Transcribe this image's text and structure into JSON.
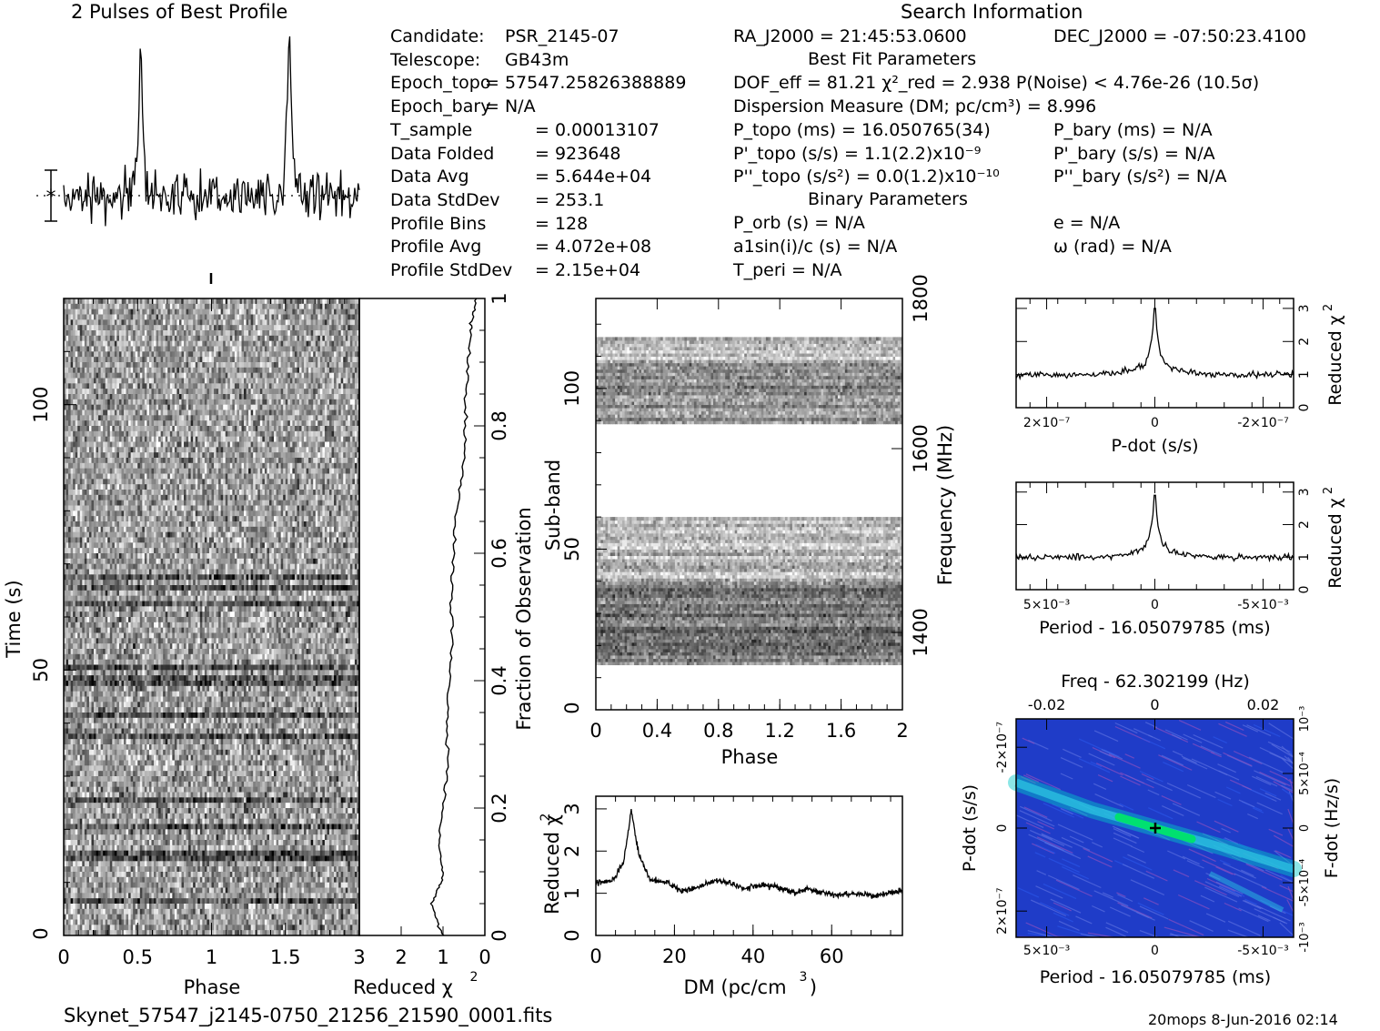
{
  "titles": {
    "profile_title": "2 Pulses of Best Profile",
    "search_title": "Search Information",
    "best_fit_title": "Best Fit Parameters",
    "binary_title": "Binary Parameters"
  },
  "candidate_info": [
    {
      "label": "Candidate:",
      "value": "PSR_2145-07"
    },
    {
      "label": "Telescope:",
      "value": "GB43m"
    },
    {
      "label": "Epoch_topo",
      "value": "= 57547.25826388889"
    },
    {
      "label": "Epoch_bary",
      "value": "= N/A"
    },
    {
      "label": "T_sample",
      "value": "= 0.00013107"
    },
    {
      "label": "Data Folded",
      "value": "= 923648"
    },
    {
      "label": "Data Avg",
      "value": "= 5.644e+04"
    },
    {
      "label": "Data StdDev",
      "value": "= 253.1"
    },
    {
      "label": "Profile Bins",
      "value": "= 128"
    },
    {
      "label": "Profile Avg",
      "value": "= 4.072e+08"
    },
    {
      "label": "Profile StdDev",
      "value": "= 2.15e+04"
    }
  ],
  "search_info": {
    "ra": "RA_J2000 = 21:45:53.0600",
    "dec": "DEC_J2000 = -07:50:23.4100",
    "dof": "DOF_eff = 81.21   χ²_red = 2.938   P(Noise) < 4.76e-26  (10.5σ)",
    "dm": "Dispersion Measure (DM; pc/cm³) = 8.996",
    "p_topo": "P_topo (ms) =  16.050765(34)",
    "p_bary": "P_bary (ms) = N/A",
    "pd_topo": "P'_topo (s/s) =  1.1(2.2)x10⁻⁹",
    "pd_bary": "P'_bary (s/s) = N/A",
    "pdd_topo": "P''_topo (s/s²) = 0.0(1.2)x10⁻¹⁰",
    "pdd_bary": "P''_bary (s/s²) = N/A",
    "p_orb": "P_orb (s) = N/A",
    "e": "e = N/A",
    "a1": "a1sin(i)/c (s) = N/A",
    "omega": "ω (rad) = N/A",
    "t_peri": "T_peri = N/A"
  },
  "footer": {
    "filename": "Skynet_57547_j2145-0750_21256_21590_0001.fits",
    "stamp": "20mops   8-Jun-2016 02:14"
  },
  "colors": {
    "ink": "#000000",
    "ppdot_bg": "#1f3cc8",
    "ppdot_ridge": "#00e070",
    "marker": "#000000"
  },
  "chart_data": [
    {
      "type": "line",
      "id": "profile",
      "title": "2 Pulses of Best Profile",
      "xlabel": "",
      "ylabel": "",
      "xlim": [
        0,
        2
      ],
      "peaks_phase": [
        0.52,
        1.52
      ],
      "error_bar": true
    },
    {
      "type": "heatmap",
      "id": "time_phase",
      "xlabel": "Phase",
      "ylabel": "Time (s)",
      "xlim": [
        0,
        2
      ],
      "ylim": [
        0,
        120
      ],
      "x_ticks": [
        "0",
        "0.5",
        "1",
        "1.5"
      ],
      "y_ticks": [
        "0",
        "50",
        "100"
      ]
    },
    {
      "type": "line",
      "id": "fraction_chi2",
      "xlabel": "Reduced χ²",
      "ylabel": "Fraction of Observation",
      "xlim": [
        3,
        0
      ],
      "ylim": [
        0,
        1
      ],
      "x_ticks": [
        "3",
        "2",
        "1",
        "0"
      ],
      "y_ticks": [
        "0.2",
        "0.4",
        "0.6",
        "0.8",
        "1"
      ],
      "y": [
        0,
        0.05,
        0.09,
        0.15,
        0.25,
        0.35,
        0.45,
        0.55,
        0.65,
        0.75,
        0.85,
        0.95,
        1.0
      ],
      "x": [
        1.0,
        1.3,
        1.0,
        1.1,
        0.9,
        0.9,
        0.8,
        0.8,
        0.7,
        0.5,
        0.45,
        0.35,
        0.2
      ]
    },
    {
      "type": "heatmap",
      "id": "subband_phase",
      "xlabel": "Phase",
      "ylabel": "Sub-band",
      "y2label": "Frequency (MHz)",
      "xlim": [
        0,
        2
      ],
      "ylim": [
        0,
        128
      ],
      "x_ticks": [
        "0",
        "0.4",
        "0.8",
        "1.2",
        "1.6",
        "2"
      ],
      "y_ticks": [
        "0",
        "50",
        "100"
      ],
      "y2_ticks": [
        "1400",
        "1600",
        "1800"
      ],
      "filled_subbands": [
        [
          14,
          60
        ],
        [
          89,
          116
        ]
      ]
    },
    {
      "type": "line",
      "id": "dm_chi2",
      "xlabel": "DM (pc/cm³)",
      "ylabel": "Reduced χ²",
      "xlim": [
        0,
        78
      ],
      "ylim": [
        0,
        3.3
      ],
      "x_ticks": [
        "0",
        "20",
        "40",
        "60"
      ],
      "y_ticks": [
        "0",
        "1",
        "2",
        "3"
      ],
      "x": [
        0,
        4,
        7,
        9,
        11,
        14,
        18,
        22,
        26,
        30,
        34,
        38,
        42,
        46,
        50,
        54,
        58,
        62,
        66,
        70,
        74,
        78
      ],
      "y": [
        1.25,
        1.3,
        1.7,
        2.95,
        1.9,
        1.3,
        1.25,
        1.05,
        1.15,
        1.3,
        1.25,
        1.1,
        1.2,
        1.15,
        1.0,
        1.1,
        1.0,
        0.95,
        1.0,
        0.95,
        1.0,
        1.05
      ]
    },
    {
      "type": "line",
      "id": "pdot_chi2",
      "xlabel": "P-dot (s/s)",
      "ylabel": "Reduced χ²",
      "xlim": [
        2.8e-07,
        -2.8e-07
      ],
      "ylim": [
        0,
        3.3
      ],
      "x_ticks": [
        "2×10⁻⁷",
        "0",
        "-2×10⁻⁷"
      ],
      "y_ticks": [
        "0",
        "1",
        "2",
        "3"
      ],
      "peak": 3.0,
      "baseline": 1.0
    },
    {
      "type": "line",
      "id": "period_chi2",
      "xlabel": "Period - 16.05079785 (ms)",
      "ylabel": "Reduced χ²",
      "xlim": [
        0.0085,
        -0.0085
      ],
      "ylim": [
        0,
        3.3
      ],
      "x_ticks": [
        "5×10⁻³",
        "0",
        "-5×10⁻³"
      ],
      "y_ticks": [
        "0",
        "1",
        "2",
        "3"
      ],
      "peak": 2.9,
      "baseline": 1.0
    },
    {
      "type": "heatmap",
      "id": "period_pdot",
      "title": "Freq - 62.302199 (Hz)",
      "xlabel": "Period - 16.05079785 (ms)",
      "ylabel": "P-dot (s/s)",
      "y2label": "F-dot (Hz/s)",
      "x_ticks": [
        "5×10⁻³",
        "0",
        "-5×10⁻³"
      ],
      "x2_ticks": [
        "-0.02",
        "0",
        "0.02"
      ],
      "y_ticks": [
        "-2×10⁻⁷",
        "0",
        "2×10⁻⁷"
      ],
      "y2_ticks": [
        "10⁻³",
        "5×10⁻⁴",
        "0",
        "-5×10⁻⁴",
        "-10⁻³"
      ]
    }
  ]
}
